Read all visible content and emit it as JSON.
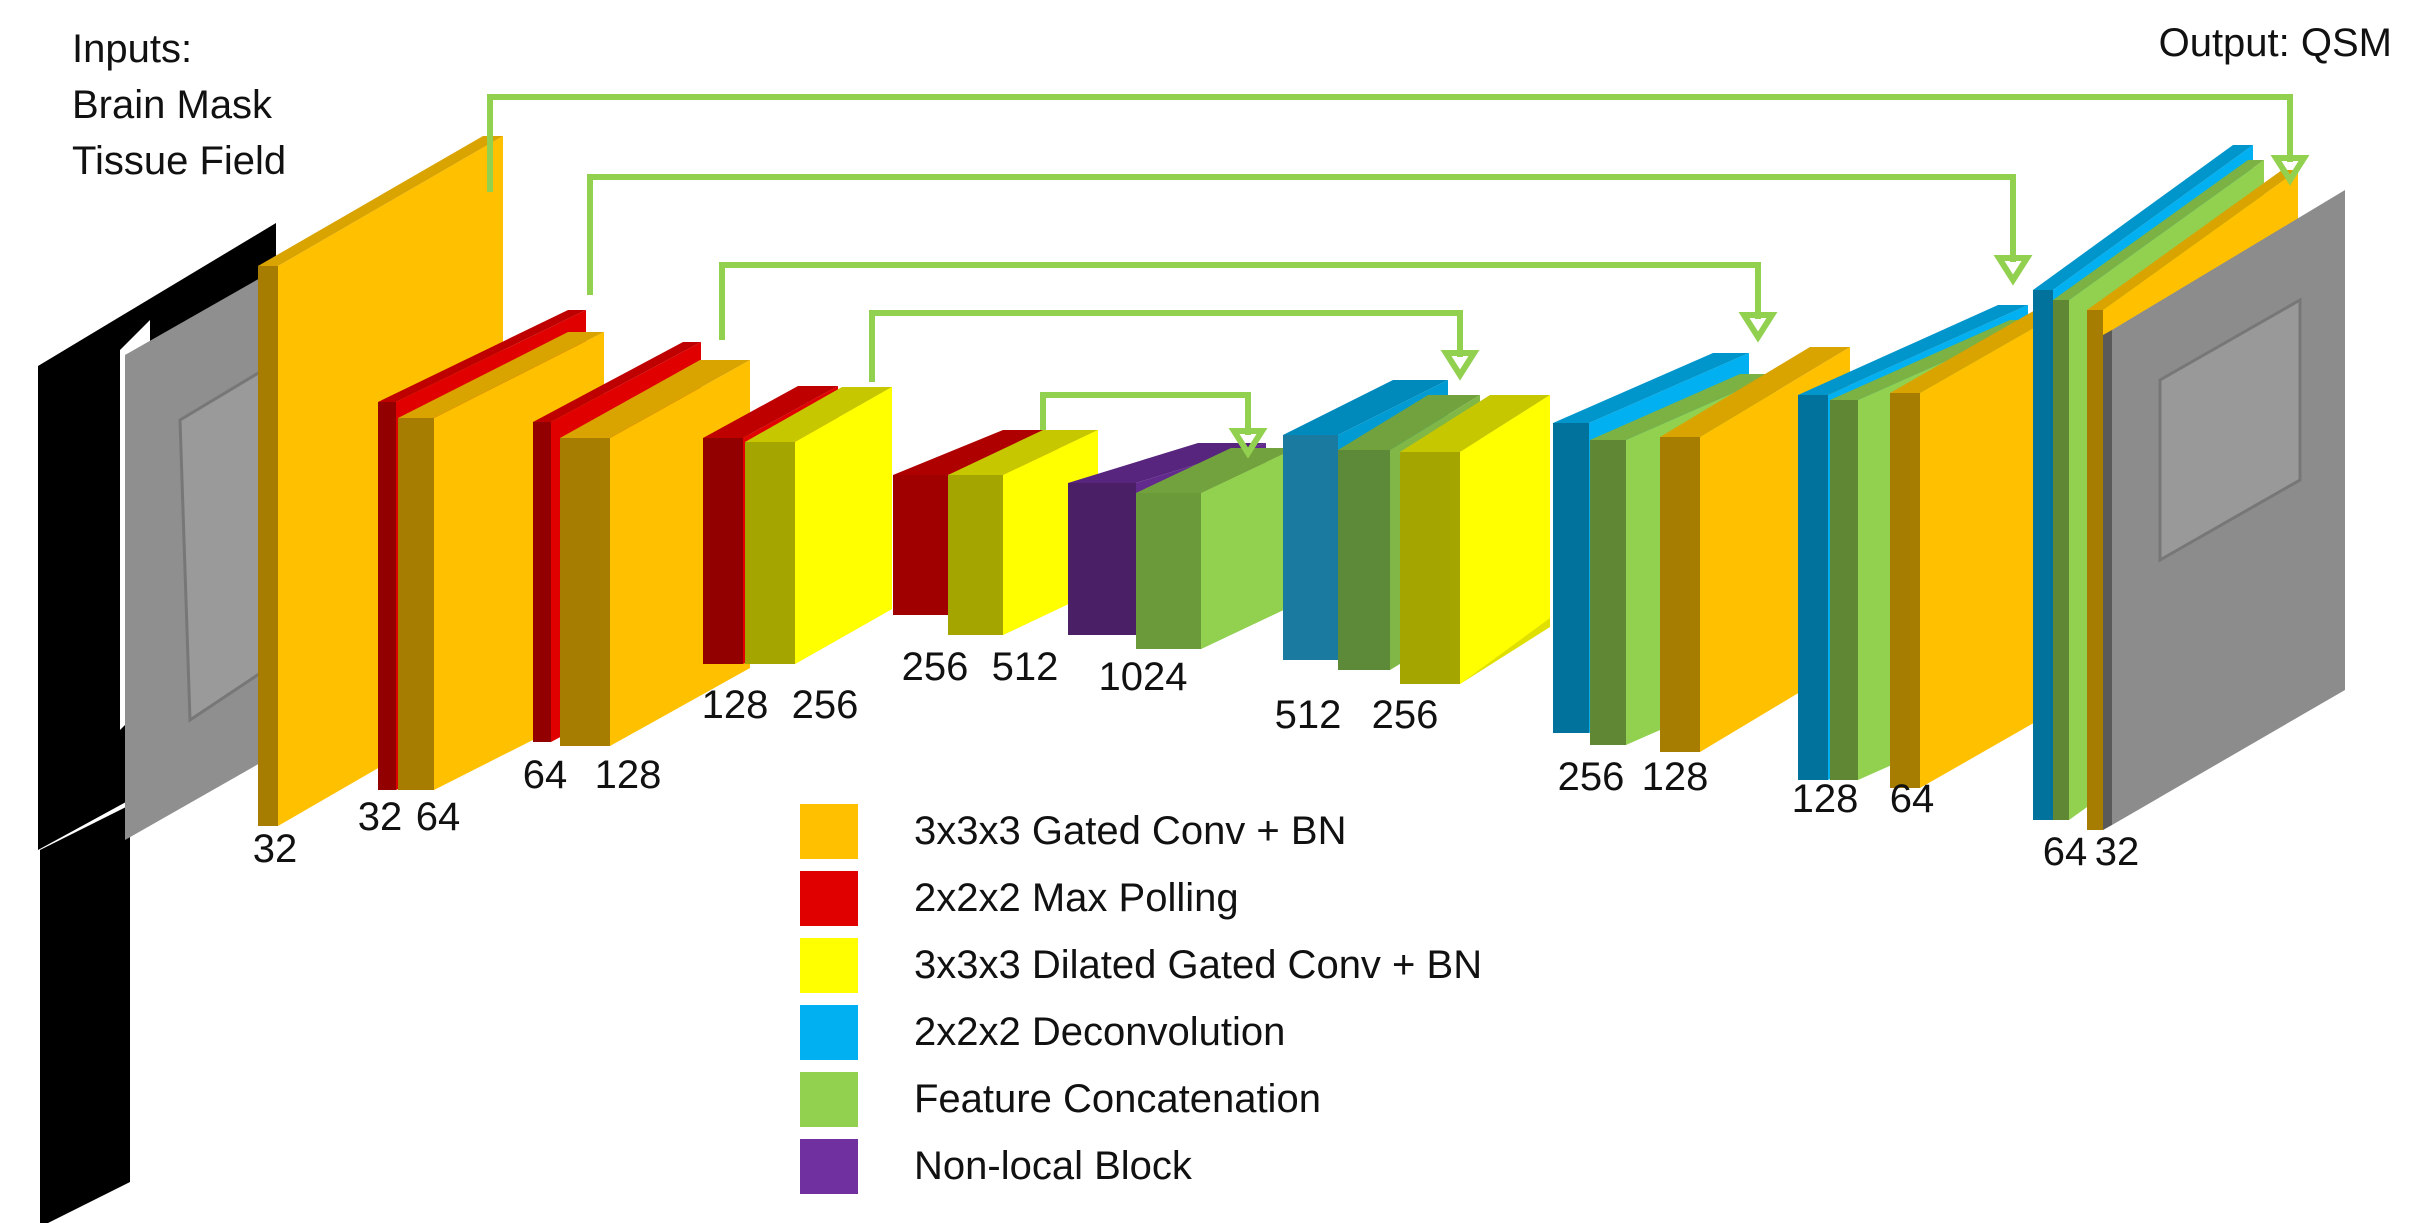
{
  "inputs": {
    "heading": "Inputs:",
    "lines": [
      "Brain Mask",
      "Tissue Field"
    ]
  },
  "output": {
    "label": "Output: QSM"
  },
  "channel_labels": [
    "32",
    "32",
    "64",
    "64",
    "128",
    "128",
    "256",
    "256",
    "512",
    "1024",
    "512",
    "256",
    "256",
    "128",
    "128",
    "64",
    "64",
    "32"
  ],
  "colors": {
    "gated_conv": "#FFC000",
    "max_pool": "#E00000",
    "dilated_conv": "#FFFF00",
    "deconv": "#00B0F0",
    "concat": "#92D050",
    "non_local": "#7030A0",
    "skip_arrow": "#92D050"
  },
  "legend": [
    {
      "label": "3x3x3 Gated Conv + BN",
      "color": "#FFC000",
      "icon": "swatch"
    },
    {
      "label": "2x2x2 Max Polling",
      "color": "#E00000",
      "icon": "swatch"
    },
    {
      "label": "3x3x3 Dilated Gated Conv + BN",
      "color": "#FFFF00",
      "icon": "swatch"
    },
    {
      "label": "2x2x2 Deconvolution",
      "color": "#00B0F0",
      "icon": "swatch"
    },
    {
      "label": "Feature Concatenation",
      "color": "#92D050",
      "icon": "swatch"
    },
    {
      "label": "Non-local Block",
      "color": "#7030A0",
      "icon": "swatch"
    }
  ]
}
